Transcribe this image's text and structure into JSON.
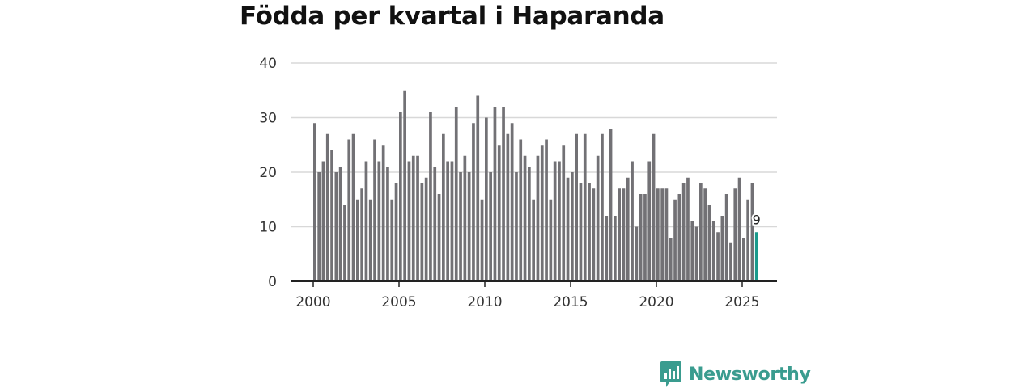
{
  "colors": {
    "bar": "#727175",
    "highlight": "#1a9a8c",
    "grid": "#d8d8d8",
    "axis": "#222222",
    "brand": "#3a9c8f"
  },
  "brand": {
    "name": "Newsworthy",
    "icon": "bar-chart-speech-bubble-icon"
  },
  "chart_data": {
    "type": "bar",
    "title": "Födda per kvartal i Haparanda",
    "xlabel": "",
    "ylabel": "",
    "ylim": [
      0,
      40
    ],
    "yticks": [
      0,
      10,
      20,
      30,
      40
    ],
    "xticks": [
      2000,
      2005,
      2010,
      2015,
      2020,
      2025
    ],
    "x_start": 2000,
    "periods_per_year": 4,
    "grid": true,
    "legend": "none",
    "highlight_last": true,
    "last_value_label": "9",
    "series": [
      {
        "name": "Födda",
        "values": [
          29,
          20,
          22,
          27,
          24,
          20,
          21,
          14,
          26,
          27,
          15,
          17,
          22,
          15,
          26,
          22,
          25,
          21,
          15,
          18,
          31,
          35,
          22,
          23,
          23,
          18,
          19,
          31,
          21,
          16,
          27,
          22,
          22,
          32,
          20,
          23,
          20,
          29,
          34,
          15,
          30,
          20,
          32,
          25,
          32,
          27,
          29,
          20,
          26,
          23,
          21,
          15,
          23,
          25,
          26,
          15,
          22,
          22,
          25,
          19,
          20,
          27,
          18,
          27,
          18,
          17,
          23,
          27,
          12,
          28,
          12,
          17,
          17,
          19,
          22,
          10,
          16,
          16,
          22,
          27,
          17,
          17,
          17,
          8,
          15,
          16,
          18,
          19,
          11,
          10,
          18,
          17,
          14,
          11,
          9,
          12,
          16,
          7,
          17,
          19,
          8,
          15,
          18,
          9
        ]
      }
    ]
  }
}
